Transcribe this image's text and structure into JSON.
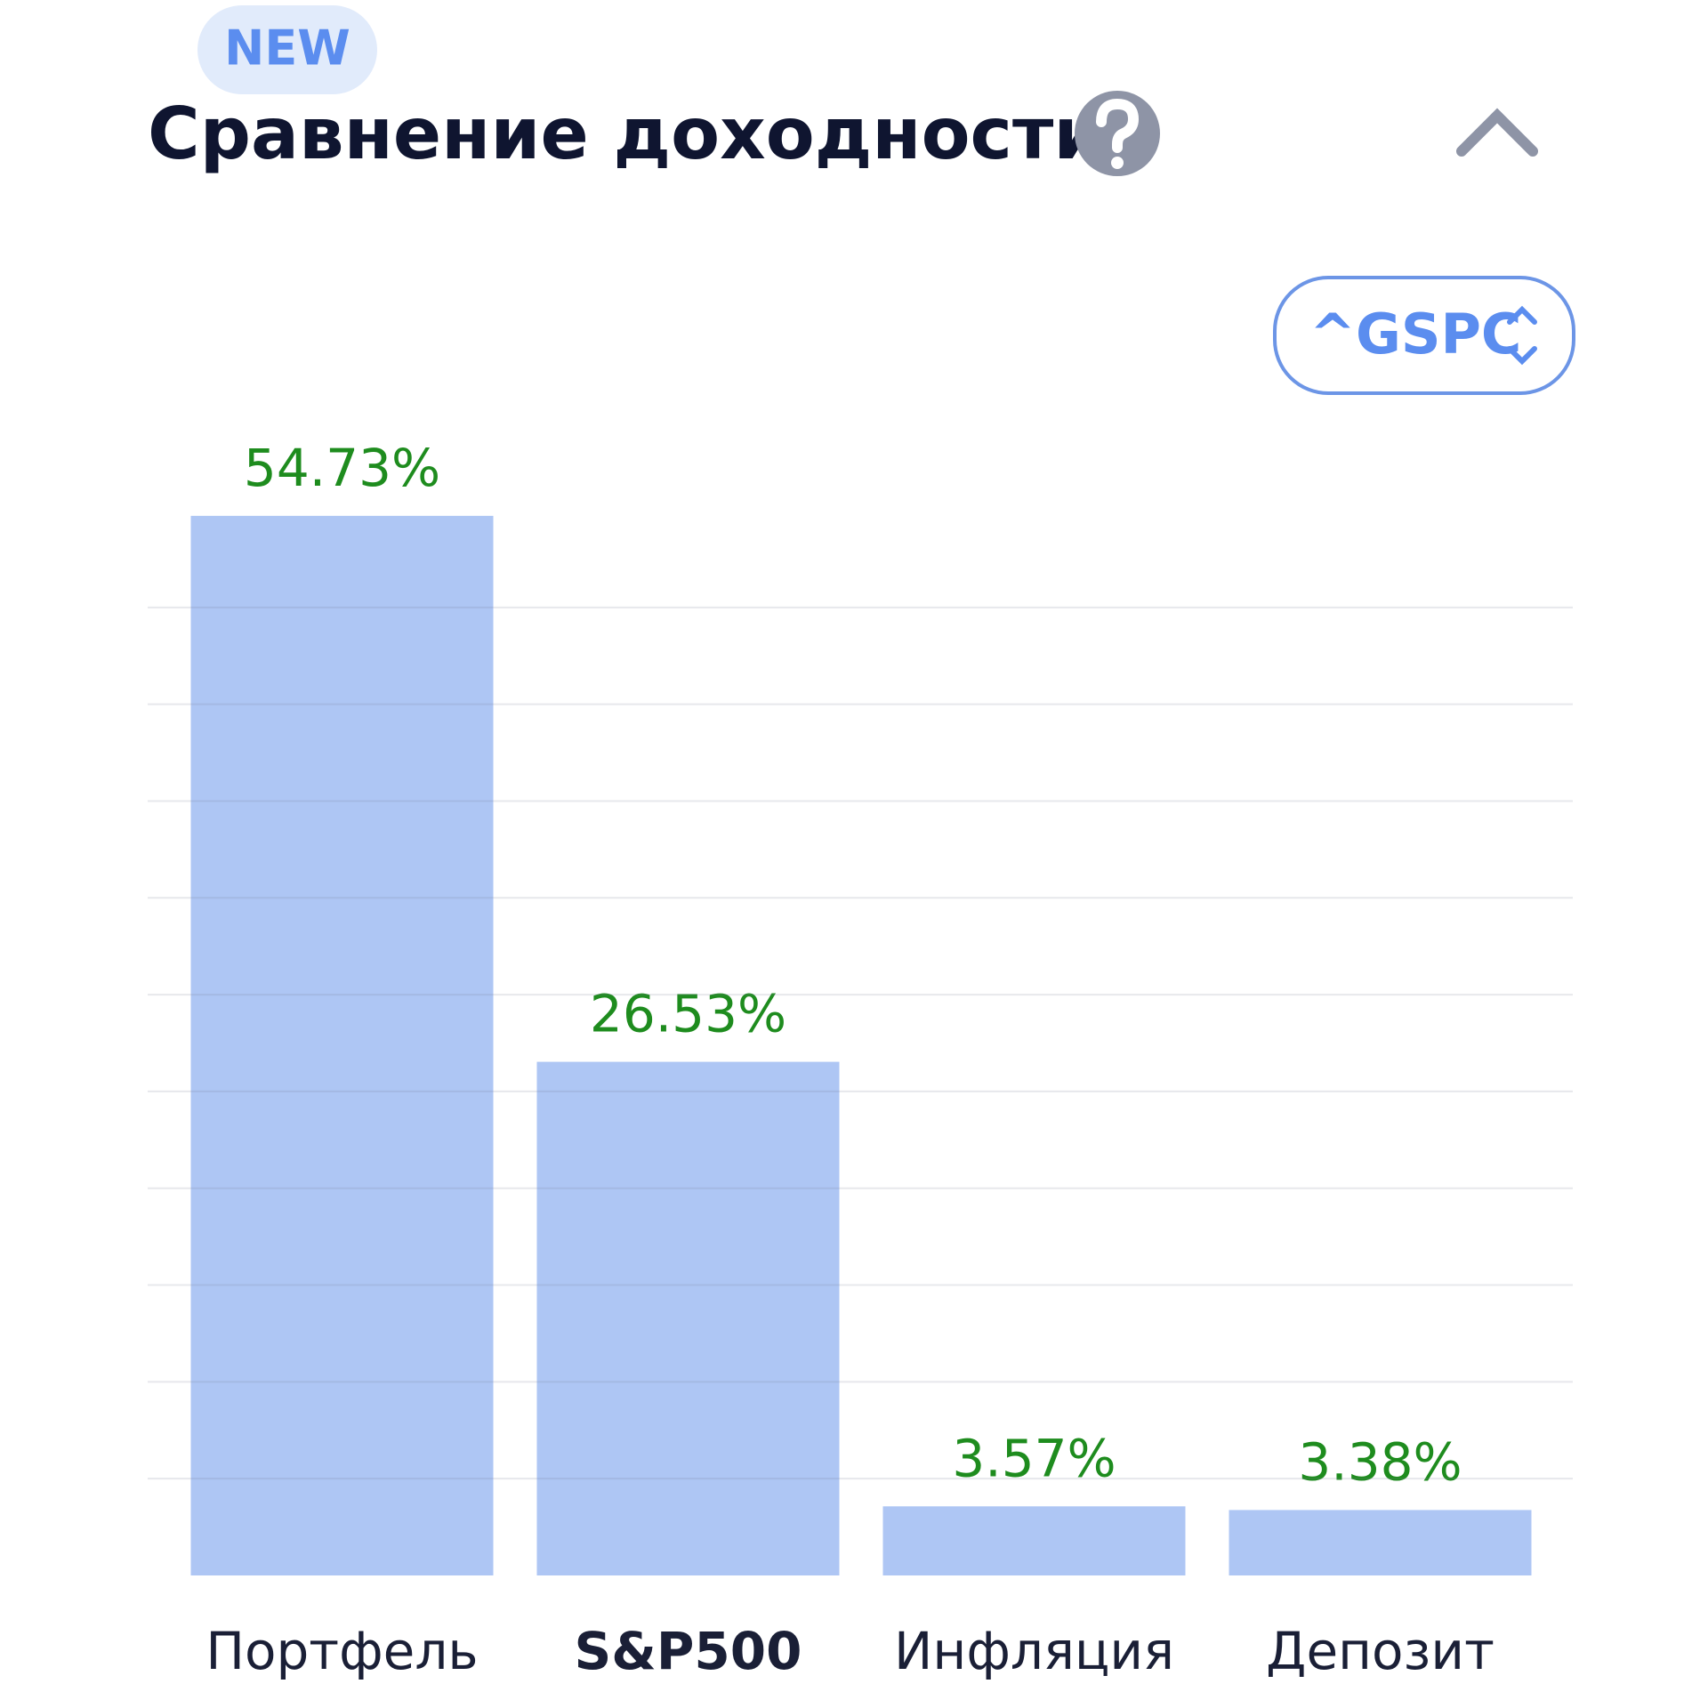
{
  "badge": "NEW",
  "header": {
    "title": "Сравнение доходности"
  },
  "selector": {
    "label": "^GSPC"
  },
  "chart_data": {
    "type": "bar",
    "categories": [
      "Портфель",
      "S&P500",
      "Инфляция",
      "Депозит"
    ],
    "values": [
      54.73,
      26.53,
      3.57,
      3.38
    ],
    "value_labels": [
      "54.73%",
      "26.53%",
      "3.57%",
      "3.38%"
    ],
    "color": "#aec6f4",
    "label_color": "#1e8c1e",
    "ylim": [
      0,
      55
    ],
    "yticks": [
      0,
      5,
      10,
      15,
      20,
      25,
      30,
      35,
      40,
      45,
      50
    ],
    "grid": true
  }
}
